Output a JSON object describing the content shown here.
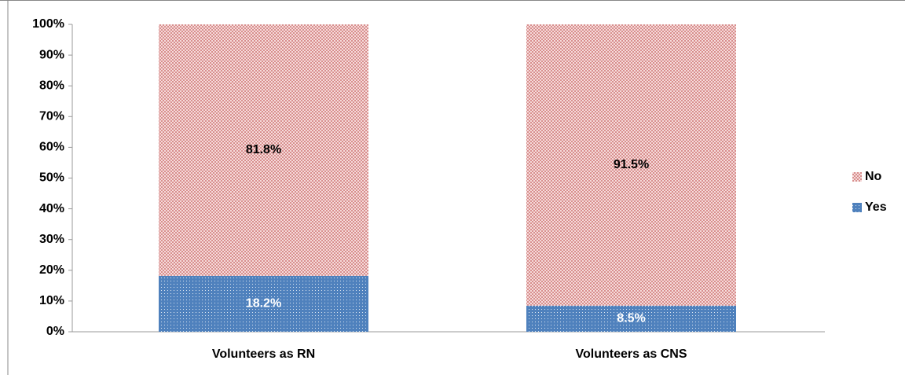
{
  "chart_data": {
    "type": "stacked_bar",
    "categories": [
      "Volunteers as RN",
      "Volunteers as CNS"
    ],
    "series": [
      {
        "name": "Yes",
        "color": "#4f81bd",
        "values": [
          18.2,
          8.5
        ],
        "value_labels": [
          "18.2%",
          "8.5%"
        ]
      },
      {
        "name": "No",
        "color": "#c0504d",
        "values": [
          81.8,
          91.5
        ],
        "value_labels": [
          "81.8%",
          "91.5%"
        ]
      }
    ],
    "ylim": [
      0,
      100
    ],
    "yticks": [
      {
        "value": 0,
        "label": "0%"
      },
      {
        "value": 10,
        "label": "10%"
      },
      {
        "value": 20,
        "label": "20%"
      },
      {
        "value": 30,
        "label": "30%"
      },
      {
        "value": 40,
        "label": "40%"
      },
      {
        "value": 50,
        "label": "50%"
      },
      {
        "value": 60,
        "label": "60%"
      },
      {
        "value": 70,
        "label": "70%"
      },
      {
        "value": 80,
        "label": "80%"
      },
      {
        "value": 90,
        "label": "90%"
      },
      {
        "value": 100,
        "label": "100%"
      }
    ],
    "grid": false,
    "legend": "right"
  }
}
